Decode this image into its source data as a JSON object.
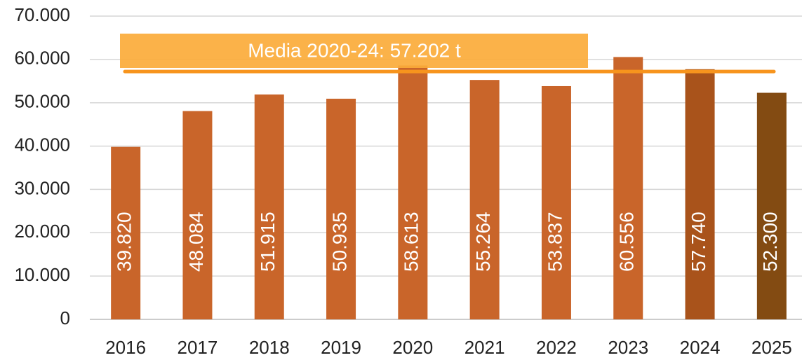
{
  "chart_data": {
    "type": "bar",
    "categories": [
      "2016",
      "2017",
      "2018",
      "2019",
      "2020",
      "2021",
      "2022",
      "2023",
      "2024",
      "2025"
    ],
    "values": [
      39820,
      48084,
      51915,
      50935,
      58613,
      55264,
      53837,
      60556,
      57740,
      52300
    ],
    "value_labels": [
      "39.820",
      "48.084",
      "51.915",
      "50.935",
      "58.613",
      "55.264",
      "53.837",
      "60.556",
      "57.740",
      "52.300"
    ],
    "colors": [
      "#c9652a",
      "#c9652a",
      "#c9652a",
      "#c9652a",
      "#c9652a",
      "#c9652a",
      "#c9652a",
      "#c9652a",
      "#a9531b",
      "#834b12"
    ],
    "ylim": [
      0,
      70000
    ],
    "yticks": [
      0,
      {
        "value": 10000,
        "label": "10.000"
      },
      {
        "value": 20000,
        "label": "20.000"
      },
      {
        "value": 30000,
        "label": "30.000"
      },
      {
        "value": 40000,
        "label": "40.000"
      },
      {
        "value": 50000,
        "label": "50.000"
      },
      {
        "value": 60000,
        "label": "60.000"
      },
      {
        "value": 70000,
        "label": "70.000"
      }
    ],
    "grid": true,
    "mean_line": {
      "value": 57202,
      "label": "Media 2020-24: 57.202 t",
      "color": "#f7941d"
    }
  }
}
